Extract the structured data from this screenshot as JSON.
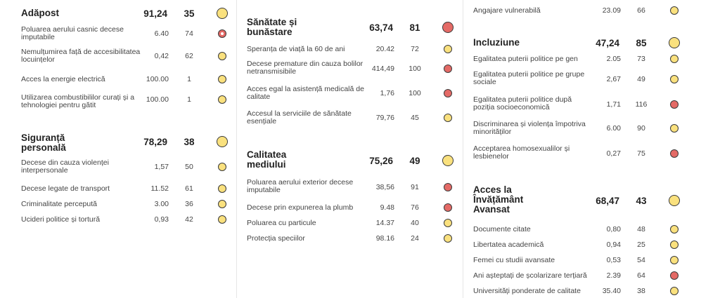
{
  "colors": {
    "yellow": "#fae17e",
    "red": "#e46a66",
    "border": "#3a3a3a"
  },
  "columns": [
    {
      "sections": [
        {
          "title": "Adăpost",
          "score": "91,24",
          "rank": "35",
          "status": "yellow",
          "rows": [
            {
              "label": "Poluarea aerului casnic decese imputabile",
              "value": "6.40",
              "rank": "74",
              "status": "red-selected"
            },
            {
              "label": "Nemulțumirea față de accesibilitatea locuințelor",
              "value": "0,42",
              "rank": "62",
              "status": "yellow"
            },
            {
              "label": "Acces la energie electrică",
              "value": "100.00",
              "rank": "1",
              "status": "yellow"
            },
            {
              "label": "Utilizarea combustibililor curați și a tehnologiei pentru gătit",
              "value": "100.00",
              "rank": "1",
              "status": "yellow"
            }
          ]
        },
        {
          "title": "Siguranță personală",
          "score": "78,29",
          "rank": "38",
          "status": "yellow",
          "rows": [
            {
              "label": "Decese din cauza violenței interpersonale",
              "value": "1,57",
              "rank": "50",
              "status": "yellow"
            },
            {
              "label": "Decese legate de transport",
              "value": "11.52",
              "rank": "61",
              "status": "yellow"
            },
            {
              "label": "Criminalitate percepută",
              "value": "3.00",
              "rank": "36",
              "status": "yellow"
            },
            {
              "label": "Ucideri politice și tortură",
              "value": "0,93",
              "rank": "42",
              "status": "yellow"
            }
          ]
        }
      ]
    },
    {
      "sections": [
        {
          "title": "Sănătate și bunăstare",
          "score": "63,74",
          "rank": "81",
          "status": "red",
          "rows": [
            {
              "label": "Speranța de viață la 60 de ani",
              "value": "20.42",
              "rank": "72",
              "status": "yellow"
            },
            {
              "label": "Decese premature din cauza bolilor netransmisibile",
              "value": "414,49",
              "rank": "100",
              "status": "red"
            },
            {
              "label": "Acces egal la asistență medicală de calitate",
              "value": "1,76",
              "rank": "100",
              "status": "red"
            },
            {
              "label": "Accesul la serviciile de sănătate esențiale",
              "value": "79,76",
              "rank": "45",
              "status": "yellow"
            }
          ]
        },
        {
          "title": "Calitatea mediului",
          "score": "75,26",
          "rank": "49",
          "status": "yellow",
          "rows": [
            {
              "label": "Poluarea aerului exterior decese imputabile",
              "value": "38,56",
              "rank": "91",
              "status": "red"
            },
            {
              "label": "Decese prin expunerea la plumb",
              "value": "9.48",
              "rank": "76",
              "status": "red"
            },
            {
              "label": "Poluarea cu particule",
              "value": "14.37",
              "rank": "40",
              "status": "yellow"
            },
            {
              "label": "Protecția speciilor",
              "value": "98.16",
              "rank": "24",
              "status": "yellow"
            }
          ]
        }
      ]
    },
    {
      "sections": [
        {
          "title": "",
          "score": "",
          "rank": "",
          "status": "none",
          "rows": [
            {
              "label": "Angajare vulnerabilă",
              "value": "23.09",
              "rank": "66",
              "status": "yellow"
            }
          ]
        },
        {
          "title": "Incluziune",
          "score": "47,24",
          "rank": "85",
          "status": "yellow",
          "rows": [
            {
              "label": "Egalitatea puterii politice pe gen",
              "value": "2.05",
              "rank": "73",
              "status": "yellow"
            },
            {
              "label": "Egalitatea puterii politice pe grupe sociale",
              "value": "2,67",
              "rank": "49",
              "status": "yellow"
            },
            {
              "label": "Egalitatea puterii politice după poziția socioeconomică",
              "value": "1,71",
              "rank": "116",
              "status": "red"
            },
            {
              "label": "Discriminarea și violența împotriva minorităților",
              "value": "6.00",
              "rank": "90",
              "status": "yellow"
            },
            {
              "label": "Acceptarea homosexualilor și lesbienelor",
              "value": "0,27",
              "rank": "75",
              "status": "red"
            }
          ]
        },
        {
          "title": "Acces la Învățământ Avansat",
          "score": "68,47",
          "rank": "43",
          "status": "yellow",
          "rows": [
            {
              "label": "Documente citate",
              "value": "0,80",
              "rank": "48",
              "status": "yellow"
            },
            {
              "label": "Libertatea academică",
              "value": "0,94",
              "rank": "25",
              "status": "yellow"
            },
            {
              "label": "Femei cu studii avansate",
              "value": "0,53",
              "rank": "54",
              "status": "yellow"
            },
            {
              "label": "Ani așteptați de școlarizare terțiară",
              "value": "2.39",
              "rank": "64",
              "status": "red"
            },
            {
              "label": "Universități ponderate de calitate",
              "value": "35.40",
              "rank": "38",
              "status": "yellow"
            }
          ]
        }
      ]
    }
  ]
}
